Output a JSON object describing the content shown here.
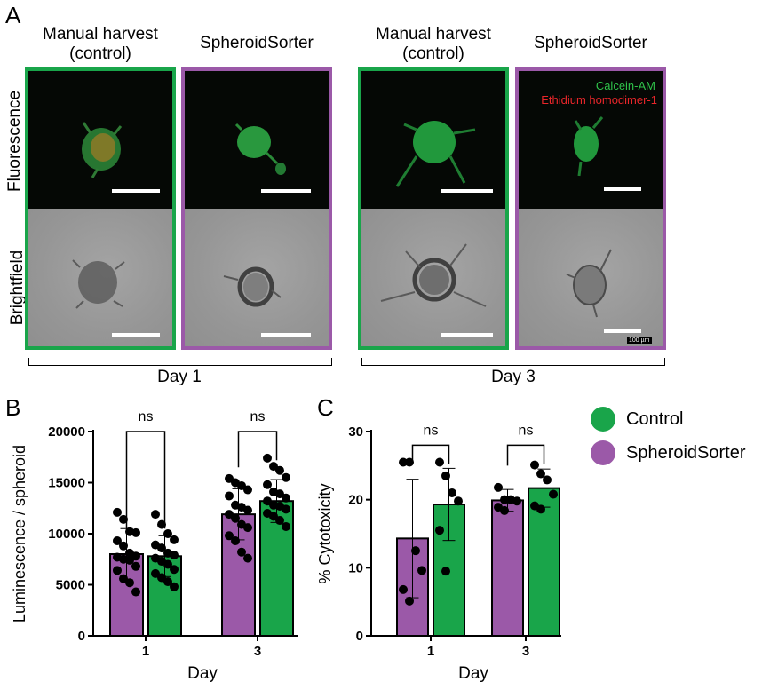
{
  "panel_labels": {
    "a": "A",
    "b": "B",
    "c": "C"
  },
  "columns": [
    {
      "title": "Manual harvest\n(control)",
      "group": "control",
      "color": "#19a54a"
    },
    {
      "title": "SpheroidSorter",
      "group": "sorter",
      "color": "#9b59a8"
    },
    {
      "title": "Manual harvest\n(control)",
      "group": "control",
      "color": "#19a54a"
    },
    {
      "title": "SpheroidSorter",
      "group": "sorter",
      "color": "#9b59a8"
    }
  ],
  "row_labels": {
    "fluorescence": "Fluorescence",
    "brightfield": "Brightfield"
  },
  "stain_labels": {
    "calcein": "Calcein-AM",
    "ethidium": "Ethidium homodimer-1"
  },
  "scale_label": "100 µm",
  "day_labels": {
    "day1": "Day 1",
    "day3": "Day 3"
  },
  "legend": [
    {
      "label": "Control",
      "color": "#19a54a"
    },
    {
      "label": "SpheroidSorter",
      "color": "#9b59a8"
    }
  ],
  "chart_data": [
    {
      "type": "bar",
      "title": "",
      "xlabel": "Day",
      "ylabel": "Luminescence / spheroid",
      "categories": [
        "1",
        "3"
      ],
      "ylim": [
        0,
        20000
      ],
      "yticks": [
        0,
        5000,
        10000,
        15000,
        20000
      ],
      "significance": [
        "ns",
        "ns"
      ],
      "series": [
        {
          "name": "SpheroidSorter",
          "color": "#9b59a8",
          "values": [
            8000,
            11900
          ],
          "sd": [
            2500,
            2500
          ],
          "points": [
            [
              12100,
              11400,
              10200,
              10100,
              9300,
              8800,
              8100,
              7800,
              7700,
              7500,
              7400,
              6800,
              6400,
              5600,
              5200,
              4300
            ],
            [
              15400,
              15000,
              14700,
              14300,
              13700,
              12800,
              12600,
              12300,
              11900,
              11500,
              10900,
              10600,
              9800,
              9300,
              8200,
              7600
            ]
          ]
        },
        {
          "name": "Control",
          "color": "#19a54a",
          "values": [
            7800,
            13200
          ],
          "sd": [
            2000,
            2100
          ],
          "points": [
            [
              11900,
              10900,
              10000,
              9400,
              8900,
              8600,
              8100,
              7900,
              7600,
              7300,
              7000,
              6500,
              6100,
              5700,
              5300,
              4800
            ],
            [
              17400,
              16600,
              16200,
              15500,
              14800,
              14100,
              13900,
              13500,
              13200,
              12800,
              12700,
              12400,
              12000,
              11700,
              11300,
              10700
            ]
          ]
        }
      ]
    },
    {
      "type": "bar",
      "title": "",
      "xlabel": "Day",
      "ylabel": "% Cytotoxicity",
      "categories": [
        "1",
        "3"
      ],
      "ylim": [
        0,
        30
      ],
      "yticks": [
        0,
        10,
        20,
        30
      ],
      "significance": [
        "ns",
        "ns"
      ],
      "series": [
        {
          "name": "SpheroidSorter",
          "color": "#9b59a8",
          "values": [
            14.3,
            19.9
          ],
          "sd": [
            8.7,
            1.6
          ],
          "points": [
            [
              25.5,
              25.5,
              12.5,
              9.6,
              6.8,
              5.1
            ],
            [
              21.8,
              20.0,
              20.0,
              19.8,
              18.9,
              18.4
            ]
          ]
        },
        {
          "name": "Control",
          "color": "#19a54a",
          "values": [
            19.3,
            21.7
          ],
          "sd": [
            5.3,
            2.8
          ],
          "points": [
            [
              25.5,
              23.5,
              21.0,
              19.8,
              15.5,
              9.5
            ],
            [
              25.1,
              23.8,
              22.9,
              20.8,
              19.1,
              18.6
            ]
          ]
        }
      ]
    }
  ]
}
